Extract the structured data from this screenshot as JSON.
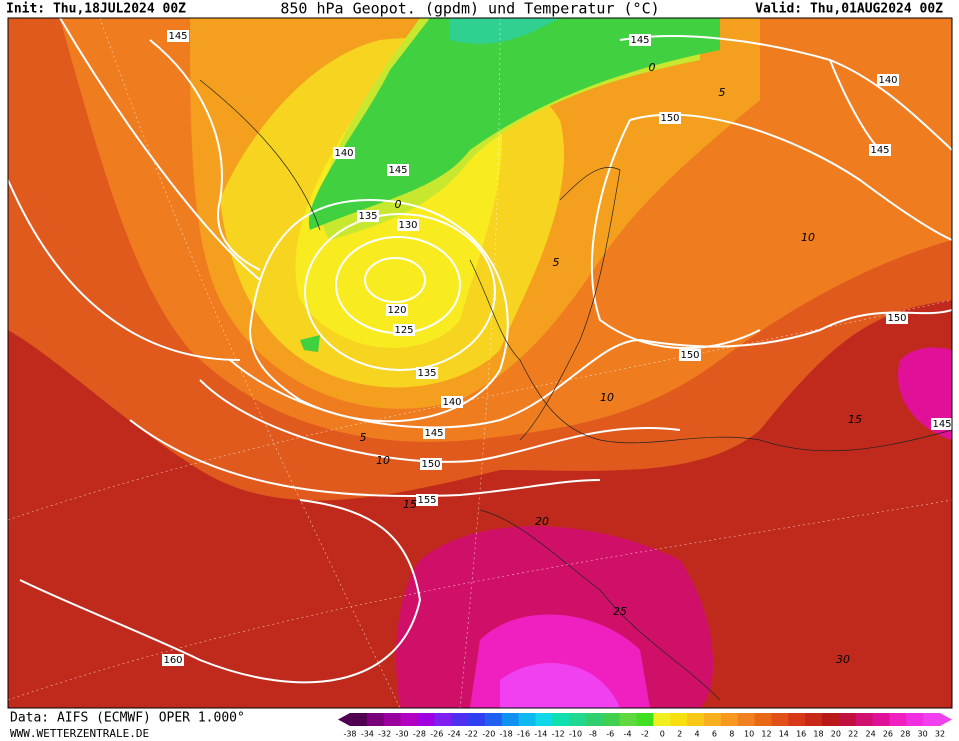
{
  "header": {
    "init": "Init: Thu,18JUL2024 00Z",
    "title": "850 hPa Geopot. (gpdm) und Temperatur (°C)",
    "valid": "Valid: Thu,01AUG2024 00Z"
  },
  "map": {
    "geopotential_labels": [
      "145",
      "145",
      "140",
      "150",
      "145",
      "140",
      "145",
      "135",
      "130",
      "120",
      "125",
      "135",
      "140",
      "145",
      "150",
      "155",
      "150",
      "150",
      "145",
      "160"
    ],
    "temperature_labels": [
      "0",
      "5",
      "0",
      "5",
      "10",
      "10",
      "15",
      "5",
      "10",
      "15",
      "20",
      "25",
      "30"
    ]
  },
  "legend": {
    "labels": [
      "-38",
      "-34",
      "-32",
      "-30",
      "-28",
      "-26",
      "-24",
      "-22",
      "-20",
      "-18",
      "-16",
      "-14",
      "-12",
      "-10",
      "-8",
      "-6",
      "-4",
      "-2",
      "0",
      "2",
      "4",
      "6",
      "8",
      "10",
      "12",
      "14",
      "16",
      "18",
      "20",
      "22",
      "24",
      "26",
      "28",
      "30",
      "32"
    ],
    "colors": [
      "#500050",
      "#78007a",
      "#9a009e",
      "#b400c0",
      "#a000e0",
      "#8020f0",
      "#5030f0",
      "#3040f0",
      "#2060f0",
      "#1090f0",
      "#10b8f0",
      "#10d8e8",
      "#10e0b0",
      "#20d890",
      "#30d070",
      "#40d050",
      "#60d840",
      "#40e020",
      "#f0f020",
      "#f8e010",
      "#f8c818",
      "#f8b020",
      "#f89820",
      "#f08020",
      "#e86818",
      "#e05018",
      "#d83818",
      "#c82818",
      "#b81818",
      "#c01040",
      "#d01070",
      "#e01098",
      "#f020c0",
      "#f030e0",
      "#f040f0"
    ]
  },
  "footer": {
    "source": "Data: AIFS (ECMWF) OPER 1.000°",
    "site": "WWW.WETTERZENTRALE.DE"
  }
}
